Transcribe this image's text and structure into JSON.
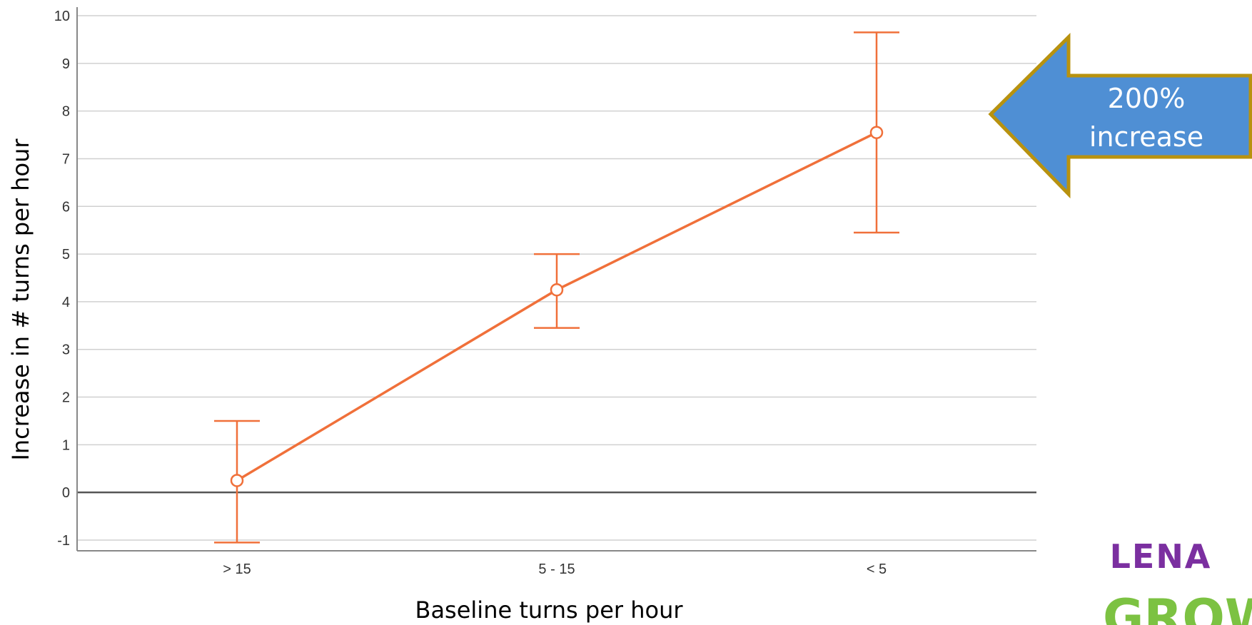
{
  "chart_data": {
    "type": "line",
    "title": "",
    "xlabel": "Baseline turns per hour",
    "ylabel": "Increase in # turns per hour",
    "categories": [
      "> 15",
      "5 - 15",
      "< 5"
    ],
    "series": [
      {
        "values": [
          0.25,
          4.25,
          7.55
        ],
        "error_low": [
          -1.05,
          3.45,
          5.45
        ],
        "error_high": [
          1.5,
          5.0,
          9.65
        ],
        "color": "#f0703a"
      }
    ],
    "ylim": [
      -1,
      10
    ],
    "yticks": [
      -1,
      0,
      1,
      2,
      3,
      4,
      5,
      6,
      7,
      8,
      9,
      10
    ],
    "grid": true,
    "reference_line": 0
  },
  "callout": {
    "line1": "200%",
    "line2": "increase",
    "fill": "#4f8fd4",
    "border": "#b8920f"
  },
  "logo": {
    "text_top": "LENA",
    "text_bottom": "GROW",
    "color_top": "#7b2fa0",
    "color_bottom": "#7cc242"
  }
}
